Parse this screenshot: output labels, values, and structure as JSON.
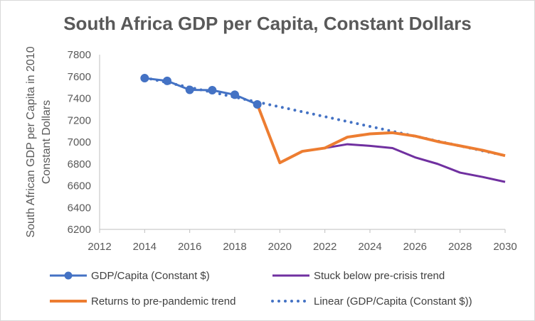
{
  "chart_data": {
    "type": "line",
    "title": "South Africa GDP per Capita, Constant Dollars",
    "xlabel": "",
    "ylabel": [
      "South African GDP per Capita in 2010",
      "Constant Dollars"
    ],
    "xlim": [
      2012,
      2030
    ],
    "ylim": [
      6200,
      7800
    ],
    "x_ticks": [
      "2012",
      "2014",
      "2016",
      "2018",
      "2020",
      "2022",
      "2024",
      "2026",
      "2028",
      "2030"
    ],
    "y_ticks": [
      "6200",
      "6400",
      "6600",
      "6800",
      "7000",
      "7200",
      "7400",
      "7600",
      "7800"
    ],
    "grid": false,
    "legend_position": "bottom",
    "series": [
      {
        "name": "GDP/Capita (Constant $)",
        "color": "#4472c4",
        "style": "solid-markers",
        "x": [
          2014,
          2015,
          2016,
          2017,
          2018,
          2019
        ],
        "y": [
          7585,
          7560,
          7478,
          7475,
          7433,
          7345
        ]
      },
      {
        "name": "Stuck below pre-crisis trend",
        "color": "#7030a0",
        "style": "solid",
        "x": [
          2020,
          2021,
          2022,
          2023,
          2024,
          2025,
          2026,
          2027,
          2028,
          2029,
          2030
        ],
        "y": [
          6810,
          6915,
          6945,
          6980,
          6965,
          6945,
          6860,
          6800,
          6720,
          6680,
          6635
        ]
      },
      {
        "name": "Returns to pre-pandemic trend",
        "color": "#ed7d31",
        "style": "solid-thick",
        "x": [
          2019,
          2020,
          2021,
          2022,
          2023,
          2024,
          2025,
          2026,
          2027,
          2028,
          2029,
          2030
        ],
        "y": [
          7345,
          6810,
          6915,
          6945,
          7045,
          7075,
          7085,
          7055,
          7005,
          6965,
          6925,
          6875
        ]
      },
      {
        "name": "Linear (GDP/Capita (Constant $))",
        "color": "#4472c4",
        "style": "dotted",
        "x": [
          2014,
          2030
        ],
        "y": [
          7590,
          6875
        ]
      }
    ]
  }
}
